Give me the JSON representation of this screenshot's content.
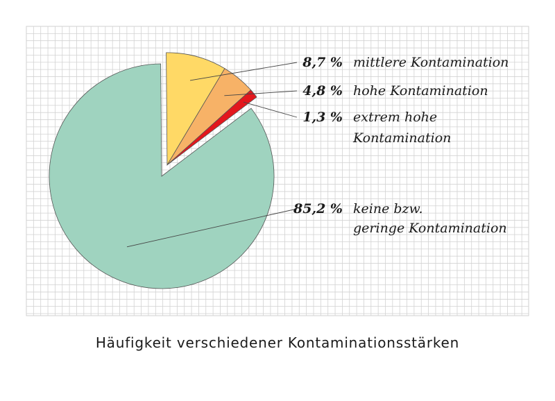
{
  "chart_data": {
    "type": "pie",
    "title": "Häufigkeit verschiedener Kontaminationsstärken",
    "slices": [
      {
        "value": 85.2,
        "percent_label": "85,2 %",
        "label_lines": [
          "keine bzw.",
          "geringe Kontamination"
        ],
        "color": "#9fd3bf",
        "exploded": false
      },
      {
        "value": 8.7,
        "percent_label": "8,7 %",
        "label_lines": [
          "mittlere Kontamination"
        ],
        "color": "#ffd966",
        "exploded": true
      },
      {
        "value": 4.8,
        "percent_label": "4,8 %",
        "label_lines": [
          "hohe Kontamination"
        ],
        "color": "#f7b267",
        "exploded": true
      },
      {
        "value": 1.3,
        "percent_label": "1,3 %",
        "label_lines": [
          "extrem hohe",
          "Kontamination"
        ],
        "color": "#e3171d",
        "exploded": true
      }
    ],
    "grid": true
  }
}
